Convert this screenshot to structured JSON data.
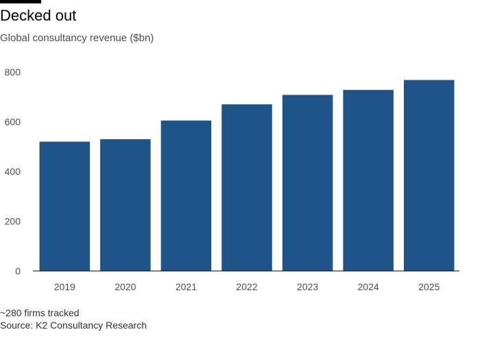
{
  "header": {
    "title": "Decked out",
    "subtitle": "Global consultancy revenue ($bn)"
  },
  "footer": {
    "note": "~280 firms tracked",
    "source": "Source: K2 Consultancy Research"
  },
  "colors": {
    "bar": "#1f5489",
    "axis": "#000000",
    "accent_rule": "#000000"
  },
  "chart_data": {
    "type": "bar",
    "title": "Decked out",
    "subtitle": "Global consultancy revenue ($bn)",
    "xlabel": "",
    "ylabel": "",
    "categories": [
      "2019",
      "2020",
      "2021",
      "2022",
      "2023",
      "2024",
      "2025"
    ],
    "values": [
      520,
      530,
      605,
      670,
      708,
      728,
      768
    ],
    "ylim": [
      0,
      800
    ],
    "yticks": [
      0,
      200,
      400,
      600,
      800
    ],
    "grid": false,
    "legend": "none"
  }
}
